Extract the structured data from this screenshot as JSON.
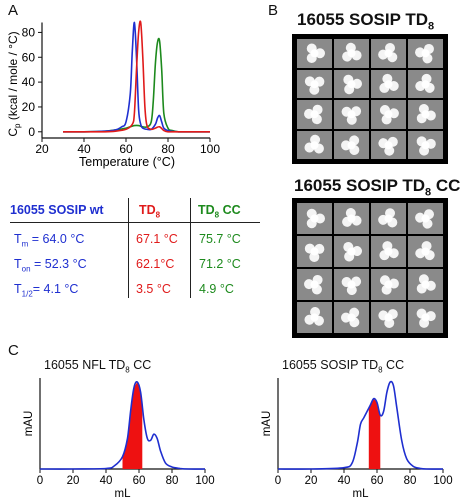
{
  "panels": {
    "a": "A",
    "b": "B",
    "c": "C"
  },
  "colors": {
    "wt": "#1f2fd0",
    "td8": "#e01b1b",
    "td8cc": "#1d8a1d",
    "fill": "#ee1111",
    "sec": "#1f2fd0"
  },
  "dsc": {
    "ylabel_main": "C",
    "ylabel_sub": "p",
    "ylabel_rest": " (kcal / mole / °C)",
    "xlabel": "Temperature (°C)",
    "xticks": [
      "20",
      "40",
      "60",
      "80",
      "100"
    ],
    "yticks": [
      "0",
      "20",
      "40",
      "60",
      "80"
    ]
  },
  "table": {
    "headers": {
      "wt": "16055 SOSIP wt",
      "td8_main": "TD",
      "td8_sub": "8",
      "td8cc_main": "TD",
      "td8cc_sub": "8",
      "td8cc_rest": " CC"
    },
    "rows": [
      {
        "lab_main": "T",
        "lab_sub": "m",
        "wt": " = 64.0 °C",
        "td8": "67.1 °C",
        "td8cc": "75.7 °C"
      },
      {
        "lab_main": "T",
        "lab_sub": "on",
        "wt": " = 52.3 °C",
        "td8": "62.1°C",
        "td8cc": "71.2 °C"
      },
      {
        "lab_main": "T",
        "lab_sub": "1/2",
        "wt": "= 4.1 °C",
        "td8": "3.5 °C",
        "td8cc": "4.9 °C"
      }
    ]
  },
  "em": {
    "title1_main": "16055 SOSIP TD",
    "title1_sub": "8",
    "title2_main": "16055 SOSIP TD",
    "title2_sub": "8",
    "title2_rest": " CC"
  },
  "sec": {
    "left_title_main": "16055 NFL TD",
    "left_title_sub": "8",
    "left_title_rest": " CC",
    "right_title_main": "16055 SOSIP TD",
    "right_title_sub": "8",
    "right_title_rest": " CC",
    "ylabel": "mAU",
    "xlabel": "mL",
    "xticks": [
      "0",
      "20",
      "40",
      "60",
      "80",
      "100"
    ]
  },
  "chart_data": [
    {
      "type": "line",
      "panel": "A",
      "xlabel": "Temperature (°C)",
      "ylabel": "Cp (kcal / mole / °C)",
      "xlim": [
        20,
        100
      ],
      "ylim": [
        -5,
        90
      ],
      "series": [
        {
          "name": "16055 SOSIP wt",
          "x": [
            30,
            40,
            50,
            55,
            58,
            60,
            62,
            63,
            64,
            65,
            66,
            67,
            68,
            70,
            72,
            74,
            75,
            76,
            77,
            78,
            80,
            85,
            100
          ],
          "y": [
            0,
            0,
            0.5,
            1.5,
            4,
            8,
            30,
            65,
            88,
            60,
            18,
            6,
            3,
            2,
            2,
            6,
            11,
            13,
            8,
            3,
            1,
            0,
            0
          ]
        },
        {
          "name": "TD8",
          "x": [
            30,
            40,
            50,
            55,
            60,
            63,
            64,
            65,
            66,
            67,
            68,
            69,
            70,
            72,
            74,
            76,
            78,
            80,
            85,
            100
          ],
          "y": [
            0,
            0,
            0,
            0.5,
            2,
            6,
            15,
            50,
            80,
            88,
            60,
            20,
            5,
            2,
            3,
            4,
            1,
            0,
            0,
            0
          ]
        },
        {
          "name": "TD8 CC",
          "x": [
            30,
            40,
            50,
            55,
            60,
            62,
            64,
            66,
            68,
            70,
            72,
            73,
            74,
            75,
            76,
            77,
            78,
            80,
            82,
            85,
            90,
            100
          ],
          "y": [
            0,
            0,
            0.5,
            1.5,
            3,
            4,
            5,
            5,
            4,
            4,
            8,
            25,
            55,
            72,
            73,
            50,
            15,
            3,
            1,
            0,
            0,
            0
          ]
        }
      ]
    },
    {
      "type": "line",
      "panel": "C-left",
      "title": "16055 NFL TD8 CC",
      "xlabel": "mL",
      "ylabel": "mAU",
      "xlim": [
        0,
        100
      ],
      "series": [
        {
          "name": "",
          "x": [
            0,
            20,
            40,
            45,
            50,
            53,
            55,
            57,
            59,
            61,
            63,
            65,
            67,
            69,
            71,
            73,
            76,
            80,
            85,
            90,
            100
          ],
          "y": [
            0,
            0,
            0.5,
            3,
            12,
            30,
            58,
            80,
            85,
            75,
            48,
            30,
            28,
            34,
            30,
            18,
            6,
            2,
            0.5,
            0,
            0
          ]
        }
      ],
      "shaded_region": [
        50,
        62
      ]
    },
    {
      "type": "line",
      "panel": "C-right",
      "title": "16055 SOSIP TD8 CC",
      "xlabel": "mL",
      "ylabel": "mAU",
      "xlim": [
        0,
        100
      ],
      "series": [
        {
          "name": "",
          "x": [
            0,
            20,
            40,
            45,
            48,
            50,
            52,
            54,
            56,
            58,
            60,
            62,
            64,
            66,
            68,
            70,
            72,
            75,
            78,
            82,
            86,
            90,
            100
          ],
          "y": [
            0,
            0,
            1,
            5,
            20,
            35,
            40,
            45,
            50,
            55,
            52,
            42,
            45,
            60,
            68,
            65,
            48,
            22,
            8,
            2,
            0.5,
            0,
            0
          ]
        }
      ],
      "shaded_region": [
        55,
        62
      ]
    }
  ]
}
